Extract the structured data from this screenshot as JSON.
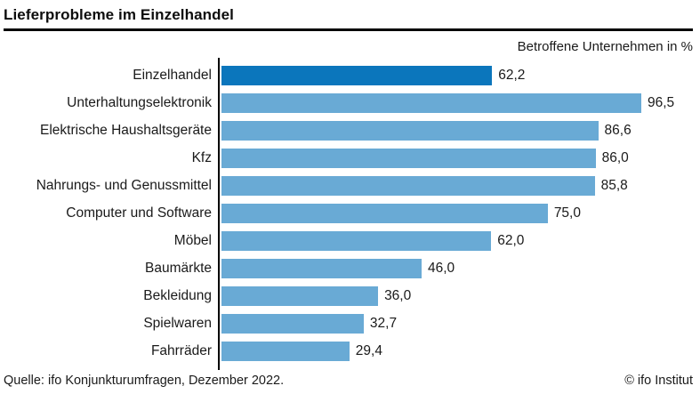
{
  "header": {
    "title": "Lieferprobleme im Einzelhandel",
    "subtitle": "Betroffene Unternehmen in %"
  },
  "footer": {
    "source": "Quelle: ifo Konjunkturumfragen, Dezember 2022.",
    "copyright": "© ifo Institut"
  },
  "colors": {
    "bar_default": "#69aad5",
    "bar_highlight": "#0b76bc",
    "axis": "#000000",
    "title_rule": "#000000"
  },
  "chart_data": {
    "type": "bar",
    "orientation": "horizontal",
    "title": "Lieferprobleme im Einzelhandel",
    "xlabel": "Betroffene Unternehmen in %",
    "ylabel": "",
    "xlim": [
      0,
      110
    ],
    "grid": false,
    "legend": false,
    "highlight_index": 0,
    "categories": [
      "Einzelhandel",
      "Unterhaltungselektronik",
      "Elektrische Haushaltsgeräte",
      "Kfz",
      "Nahrungs- und Genussmittel",
      "Computer und Software",
      "Möbel",
      "Baumärkte",
      "Bekleidung",
      "Spielwaren",
      "Fahrräder"
    ],
    "values": [
      62.2,
      96.5,
      86.6,
      86.0,
      85.8,
      75.0,
      62.0,
      46.0,
      36.0,
      32.7,
      29.4
    ],
    "value_labels": [
      "62,2",
      "96,5",
      "86,6",
      "86,0",
      "85,8",
      "75,0",
      "62,0",
      "46,0",
      "36,0",
      "32,7",
      "29,4"
    ]
  }
}
